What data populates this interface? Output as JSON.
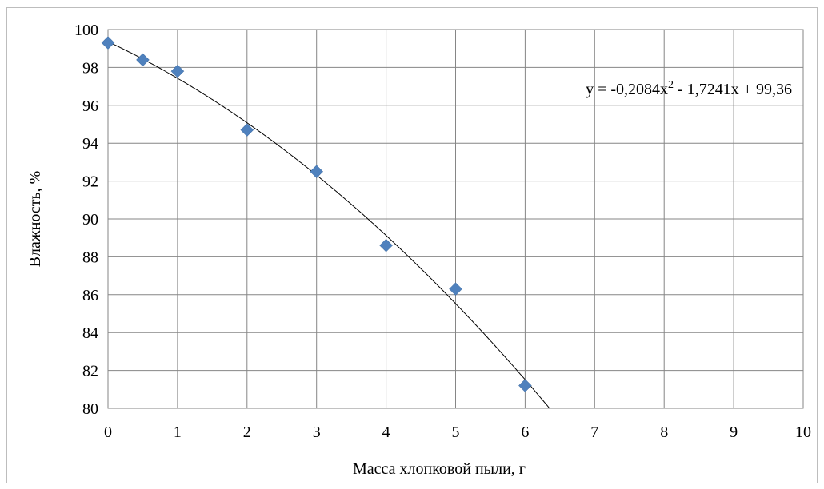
{
  "chart_data": {
    "type": "scatter",
    "title": "",
    "xlabel": "Масса хлопковой пыли, г",
    "ylabel": "Влажность, %",
    "xlim": [
      0,
      10
    ],
    "ylim": [
      80,
      100
    ],
    "x_ticks": [
      "0",
      "1",
      "2",
      "3",
      "4",
      "5",
      "6",
      "7",
      "8",
      "9",
      "10"
    ],
    "y_ticks": [
      "80",
      "82",
      "84",
      "86",
      "88",
      "90",
      "92",
      "94",
      "96",
      "98",
      "100"
    ],
    "grid": true,
    "marker": "diamond",
    "marker_color": "#4f81bd",
    "trendline_color": "#000000",
    "points": [
      {
        "x": 0,
        "y": 99.3
      },
      {
        "x": 0.5,
        "y": 98.4
      },
      {
        "x": 1,
        "y": 97.8
      },
      {
        "x": 2,
        "y": 94.7
      },
      {
        "x": 3,
        "y": 92.5
      },
      {
        "x": 4,
        "y": 88.6
      },
      {
        "x": 5,
        "y": 86.3
      },
      {
        "x": 6,
        "y": 81.2
      }
    ],
    "trendline": {
      "type": "polynomial",
      "coefficients": [
        99.36,
        -1.7241,
        -0.2084
      ],
      "equation_prefix": "y = -0,2084x",
      "equation_sup": "2",
      "equation_suffix": " - 1,7241x + 99,36"
    }
  }
}
